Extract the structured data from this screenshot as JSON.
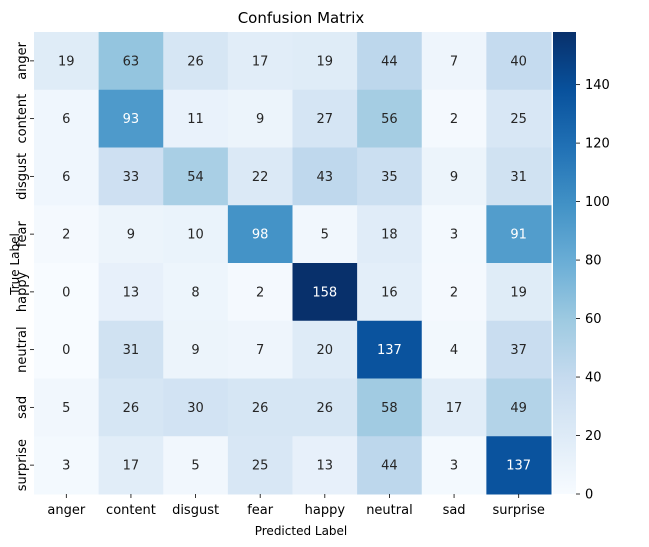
{
  "chart_data": {
    "type": "heatmap",
    "title": "Confusion Matrix",
    "xlabel": "Predicted Label",
    "ylabel": "True Label",
    "x_categories": [
      "anger",
      "content",
      "disgust",
      "fear",
      "happy",
      "neutral",
      "sad",
      "surprise"
    ],
    "y_categories": [
      "anger",
      "content",
      "disgust",
      "fear",
      "happy",
      "neutral",
      "sad",
      "surprise"
    ],
    "values": [
      [
        19,
        63,
        26,
        17,
        19,
        44,
        7,
        40
      ],
      [
        6,
        93,
        11,
        9,
        27,
        56,
        2,
        25
      ],
      [
        6,
        33,
        54,
        22,
        43,
        35,
        9,
        31
      ],
      [
        2,
        9,
        10,
        98,
        5,
        18,
        3,
        91
      ],
      [
        0,
        13,
        8,
        2,
        158,
        16,
        2,
        19
      ],
      [
        0,
        31,
        9,
        7,
        20,
        137,
        4,
        37
      ],
      [
        5,
        26,
        30,
        26,
        26,
        58,
        17,
        49
      ],
      [
        3,
        17,
        5,
        25,
        13,
        44,
        3,
        137
      ]
    ],
    "colorbar": {
      "min": 0,
      "max": 158,
      "ticks": [
        0,
        20,
        40,
        60,
        80,
        100,
        120,
        140
      ],
      "colormap": "Blues"
    },
    "colors": {
      "scale": [
        "#f7fbff",
        "#deebf7",
        "#c6dbef",
        "#9ecae1",
        "#6baed6",
        "#4292c6",
        "#2171b5",
        "#08519c",
        "#08306b"
      ],
      "dark_text_threshold": 0.5
    }
  }
}
